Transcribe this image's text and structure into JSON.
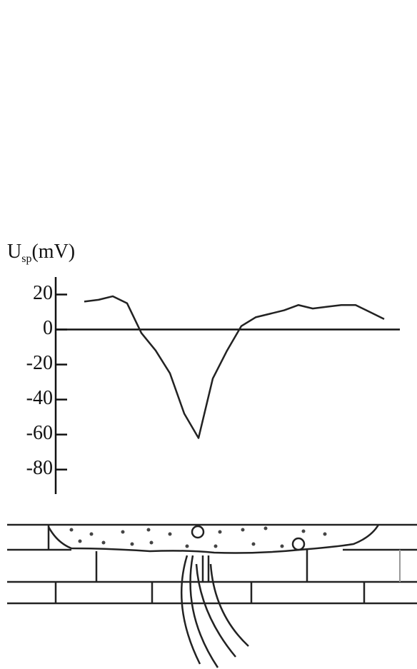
{
  "chart_data": {
    "type": "line",
    "ylabel": {
      "main": "U",
      "sub": "sp",
      "unit": "(mV)"
    },
    "categories": [
      null,
      null,
      null,
      null,
      null,
      null,
      null,
      null,
      null,
      null,
      null,
      null,
      null,
      null,
      null,
      null,
      null,
      null,
      null,
      null,
      null,
      null
    ],
    "values": [
      16,
      17,
      19,
      15,
      -2,
      -12,
      -25,
      -48,
      -62,
      -28,
      -12,
      2,
      7,
      9,
      11,
      14,
      12,
      13,
      14,
      14,
      10,
      6
    ],
    "color": "#222222",
    "ylim": [
      -94,
      30
    ],
    "yticks": [
      20,
      0,
      -20,
      -40,
      -60,
      -80
    ],
    "grid": false
  }
}
